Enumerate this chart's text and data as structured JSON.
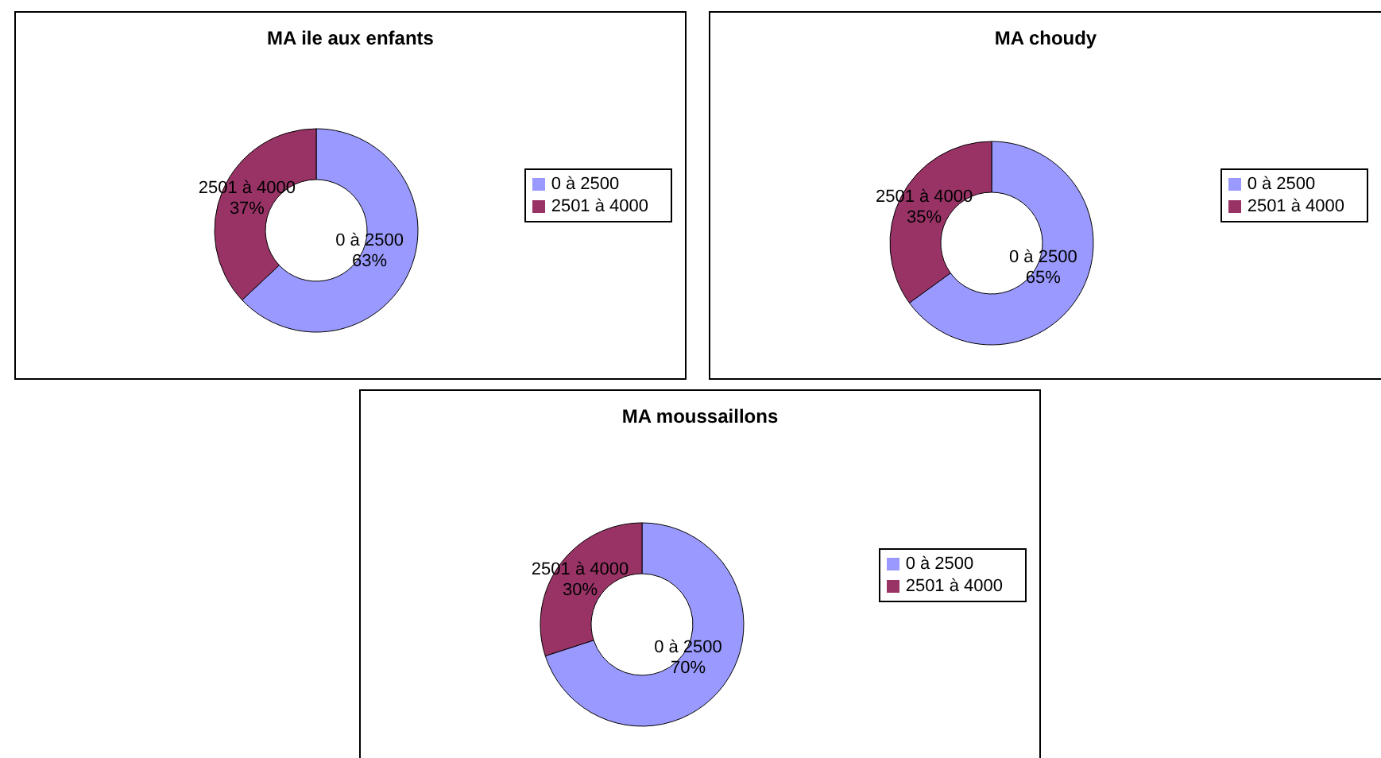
{
  "chart_data": [
    {
      "type": "donut",
      "title": "MA ile aux enfants",
      "categories": [
        "0 à 2500",
        "2501 à 4000"
      ],
      "values": [
        63,
        37
      ],
      "value_labels": [
        "63%",
        "37%"
      ],
      "colors": [
        "#9999ff",
        "#993366"
      ],
      "legend": "right"
    },
    {
      "type": "donut",
      "title": "MA choudy",
      "categories": [
        "0 à 2500",
        "2501 à 4000"
      ],
      "values": [
        65,
        35
      ],
      "value_labels": [
        "65%",
        "35%"
      ],
      "colors": [
        "#9999ff",
        "#993366"
      ],
      "legend": "right"
    },
    {
      "type": "donut",
      "title": "MA moussaillons",
      "categories": [
        "0 à 2500",
        "2501 à 4000"
      ],
      "values": [
        70,
        30
      ],
      "value_labels": [
        "70%",
        "30%"
      ],
      "colors": [
        "#9999ff",
        "#993366"
      ],
      "legend": "right"
    }
  ]
}
